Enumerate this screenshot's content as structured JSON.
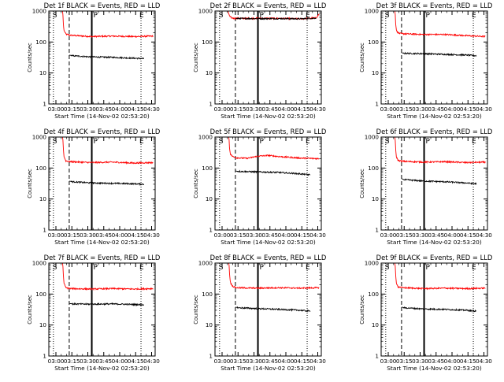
{
  "common": {
    "xlabel": "Start Time (14-Nov-02 02:53:20)",
    "ylabel": "Counts/sec",
    "x_tick_labels": [
      "03:00",
      "03:15",
      "03:30",
      "03:45",
      "04:00",
      "04:15",
      "04:30"
    ],
    "y_tick_labels": [
      "1",
      "10",
      "100",
      "1000"
    ],
    "marker_labels": {
      "S": "S",
      "P": "P",
      "E": "E"
    }
  },
  "chart_data": [
    {
      "type": "line",
      "title": "Det 1f BLACK = Events, RED = LLD",
      "x_unit": "minutes after 02:53:20",
      "xlim": [
        0,
        100
      ],
      "ylim": [
        1,
        1000
      ],
      "y_scale": "log",
      "grid": false,
      "markers": {
        "S": 4.3,
        "dashed": 19.2,
        "P": 40.4,
        "E": 86.7
      },
      "series": [
        {
          "color": "#ff0000",
          "x": [
            12.9,
            13.5,
            14.2,
            16,
            20,
            40,
            60,
            80,
            98
          ],
          "values": [
            1500,
            450,
            240,
            180,
            165,
            150,
            155,
            150,
            155
          ]
        },
        {
          "color": "#000000",
          "x": [
            19.4,
            22,
            40,
            60,
            80,
            89.5
          ],
          "values": [
            38,
            36,
            33,
            32,
            30,
            29
          ]
        }
      ]
    },
    {
      "type": "line",
      "title": "Det 2f BLACK = Events, RED = LLD",
      "x_unit": "minutes after 02:53:20",
      "xlim": [
        0,
        100
      ],
      "ylim": [
        1,
        1000
      ],
      "y_scale": "log",
      "grid": false,
      "markers": {
        "S": 4.3,
        "dashed": 19.2,
        "P": 40.4,
        "E": 86.7
      },
      "series": [
        {
          "color": "#ff0000",
          "x": [
            11.8,
            12.6,
            14,
            16,
            18,
            40,
            60,
            80,
            95,
            98
          ],
          "values": [
            1500,
            900,
            650,
            600,
            580,
            580,
            580,
            560,
            600,
            800
          ]
        },
        {
          "color": "#000000",
          "x": [
            19.4,
            22,
            40,
            60,
            80,
            95
          ],
          "values": [
            580,
            575,
            570,
            570,
            560,
            590
          ]
        }
      ]
    },
    {
      "type": "line",
      "title": "Det 3f BLACK = Events, RED = LLD",
      "x_unit": "minutes after 02:53:20",
      "xlim": [
        0,
        100
      ],
      "ylim": [
        1,
        1000
      ],
      "y_scale": "log",
      "grid": false,
      "markers": {
        "S": 4.3,
        "dashed": 19.2,
        "P": 40.4,
        "E": 86.7
      },
      "series": [
        {
          "color": "#ff0000",
          "x": [
            12.9,
            13.6,
            14.5,
            17,
            20,
            40,
            60,
            80,
            98
          ],
          "values": [
            1500,
            400,
            220,
            190,
            185,
            175,
            175,
            160,
            150
          ]
        },
        {
          "color": "#000000",
          "x": [
            19.4,
            22,
            40,
            60,
            80,
            89.5
          ],
          "values": [
            45,
            43,
            42,
            40,
            38,
            36
          ]
        }
      ]
    },
    {
      "type": "line",
      "title": "Det 4f BLACK = Events, RED = LLD",
      "x_unit": "minutes after 02:53:20",
      "xlim": [
        0,
        100
      ],
      "ylim": [
        1,
        1000
      ],
      "y_scale": "log",
      "grid": false,
      "markers": {
        "S": 4.3,
        "dashed": 19.2,
        "P": 40.4,
        "E": 86.7
      },
      "series": [
        {
          "color": "#ff0000",
          "x": [
            12.9,
            13.5,
            14.3,
            16,
            20,
            40,
            60,
            80,
            98
          ],
          "values": [
            1500,
            500,
            230,
            170,
            160,
            150,
            155,
            145,
            150
          ]
        },
        {
          "color": "#000000",
          "x": [
            19.4,
            22,
            40,
            60,
            80,
            89.5
          ],
          "values": [
            38,
            36,
            33,
            32,
            31,
            30
          ]
        }
      ]
    },
    {
      "type": "line",
      "title": "Det 5f BLACK = Events, RED = LLD",
      "x_unit": "minutes after 02:53:20",
      "xlim": [
        0,
        100
      ],
      "ylim": [
        1,
        1000
      ],
      "y_scale": "log",
      "grid": false,
      "markers": {
        "S": 4.3,
        "dashed": 19.2,
        "P": 40.4,
        "E": 86.7
      },
      "series": [
        {
          "color": "#ff0000",
          "x": [
            12.9,
            13.6,
            14.5,
            17,
            20,
            30,
            40,
            50,
            60,
            80,
            98
          ],
          "values": [
            1500,
            450,
            280,
            230,
            215,
            205,
            240,
            255,
            235,
            210,
            200
          ]
        },
        {
          "color": "#000000",
          "x": [
            19.4,
            22,
            40,
            60,
            80,
            89.5
          ],
          "values": [
            80,
            78,
            75,
            72,
            65,
            60
          ]
        }
      ]
    },
    {
      "type": "line",
      "title": "Det 6f BLACK = Events, RED = LLD",
      "x_unit": "minutes after 02:53:20",
      "xlim": [
        0,
        100
      ],
      "ylim": [
        1,
        1000
      ],
      "y_scale": "log",
      "grid": false,
      "markers": {
        "S": 4.3,
        "dashed": 19.2,
        "P": 40.4,
        "E": 86.7
      },
      "series": [
        {
          "color": "#ff0000",
          "x": [
            12.9,
            13.5,
            14.3,
            16,
            20,
            40,
            60,
            80,
            98
          ],
          "values": [
            1500,
            480,
            230,
            175,
            165,
            155,
            160,
            150,
            155
          ]
        },
        {
          "color": "#000000",
          "x": [
            19.4,
            22,
            40,
            60,
            80,
            89.5
          ],
          "values": [
            45,
            42,
            38,
            36,
            33,
            31
          ]
        }
      ]
    },
    {
      "type": "line",
      "title": "Det 7f BLACK = Events, RED = LLD",
      "x_unit": "minutes after 02:53:20",
      "xlim": [
        0,
        100
      ],
      "ylim": [
        1,
        1000
      ],
      "y_scale": "log",
      "grid": false,
      "markers": {
        "S": 4.3,
        "dashed": 19.2,
        "P": 40.4,
        "E": 86.7
      },
      "series": [
        {
          "color": "#ff0000",
          "x": [
            12.9,
            13.5,
            14.3,
            16,
            20,
            40,
            60,
            80,
            98
          ],
          "values": [
            1500,
            480,
            220,
            160,
            150,
            145,
            150,
            145,
            150
          ]
        },
        {
          "color": "#000000",
          "x": [
            19.4,
            22,
            40,
            60,
            80,
            89.5
          ],
          "values": [
            50,
            48,
            47,
            48,
            46,
            45
          ]
        }
      ]
    },
    {
      "type": "line",
      "title": "Det 8f BLACK = Events, RED = LLD",
      "x_unit": "minutes after 02:53:20",
      "xlim": [
        0,
        100
      ],
      "ylim": [
        1,
        1000
      ],
      "y_scale": "log",
      "grid": false,
      "markers": {
        "S": 4.3,
        "dashed": 19.2,
        "P": 40.4,
        "E": 86.7
      },
      "series": [
        {
          "color": "#ff0000",
          "x": [
            12.9,
            13.6,
            14.5,
            17,
            20,
            40,
            60,
            80,
            98
          ],
          "values": [
            1500,
            480,
            230,
            175,
            160,
            155,
            160,
            155,
            160
          ]
        },
        {
          "color": "#000000",
          "x": [
            19.4,
            22,
            40,
            60,
            80,
            89.5
          ],
          "values": [
            38,
            36,
            34,
            32,
            30,
            28
          ]
        }
      ]
    },
    {
      "type": "line",
      "title": "Det 9f BLACK = Events, RED = LLD",
      "x_unit": "minutes after 02:53:20",
      "xlim": [
        0,
        100
      ],
      "ylim": [
        1,
        1000
      ],
      "y_scale": "log",
      "grid": false,
      "markers": {
        "S": 4.3,
        "dashed": 19.2,
        "P": 40.4,
        "E": 86.7
      },
      "series": [
        {
          "color": "#ff0000",
          "x": [
            12.9,
            13.5,
            14.3,
            16,
            20,
            40,
            60,
            80,
            98
          ],
          "values": [
            1500,
            480,
            230,
            170,
            160,
            150,
            155,
            150,
            155
          ]
        },
        {
          "color": "#000000",
          "x": [
            19.4,
            22,
            40,
            60,
            80,
            89.5
          ],
          "values": [
            38,
            36,
            33,
            32,
            30,
            28
          ]
        }
      ]
    }
  ]
}
